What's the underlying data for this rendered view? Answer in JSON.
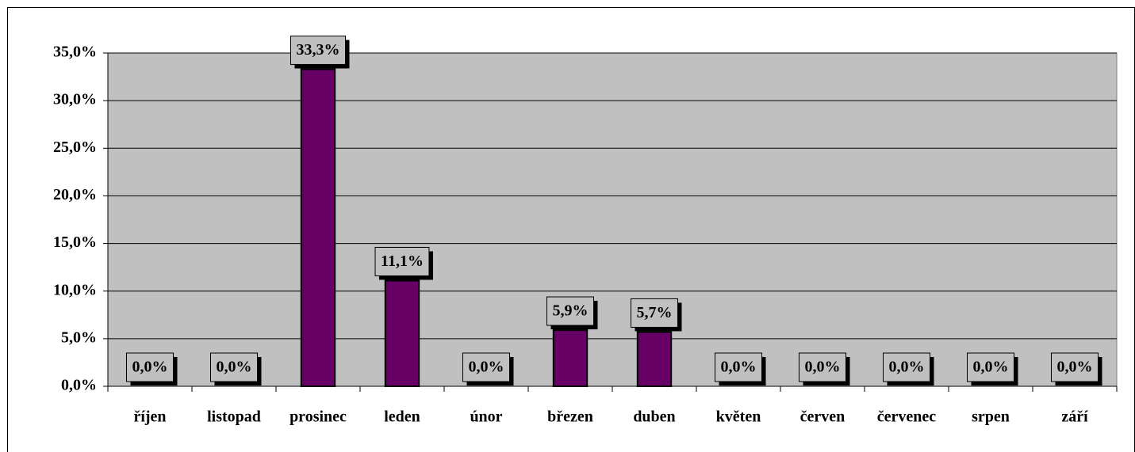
{
  "chart_data": {
    "type": "bar",
    "categories": [
      "říjen",
      "listopad",
      "prosinec",
      "leden",
      "únor",
      "březen",
      "duben",
      "květen",
      "červen",
      "červenec",
      "srpen",
      "září"
    ],
    "values": [
      0,
      0,
      33.3,
      11.1,
      0,
      5.9,
      5.7,
      0,
      0,
      0,
      0,
      0
    ],
    "value_labels": [
      "0,0%",
      "0,0%",
      "33,3%",
      "11,1%",
      "0,0%",
      "5,9%",
      "5,7%",
      "0,0%",
      "0,0%",
      "0,0%",
      "0,0%",
      "0,0%"
    ],
    "color": "#660066",
    "ylim": [
      0,
      35
    ],
    "yticks": [
      {
        "value": 0,
        "label": "0,0%"
      },
      {
        "value": 5,
        "label": "5,0%"
      },
      {
        "value": 10,
        "label": "10,0%"
      },
      {
        "value": 15,
        "label": "15,0%"
      },
      {
        "value": 20,
        "label": "20,0%"
      },
      {
        "value": 25,
        "label": "25,0%"
      },
      {
        "value": 30,
        "label": "30,0%"
      },
      {
        "value": 35,
        "label": "35,0%"
      }
    ],
    "grid": true
  }
}
